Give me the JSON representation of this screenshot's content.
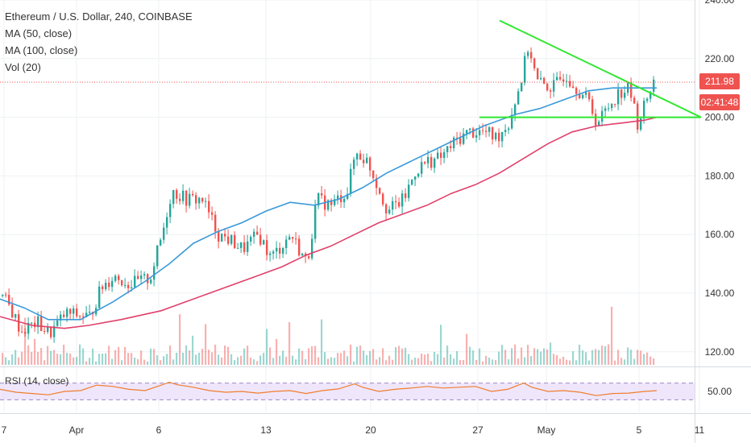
{
  "legend": {
    "title": "Ethereum / U.S. Dollar, 240, COINBASE",
    "ma50": "MA (50, close)",
    "ma100": "MA (100, close)",
    "vol": "Vol (20)",
    "rsi": "RSI (14, close)"
  },
  "price_tag": {
    "value": "211.98",
    "countdown": "02:41:48"
  },
  "colors": {
    "up": "#26a69a",
    "down": "#ef5350",
    "ma50": "#3a9ad9",
    "ma100": "#e0406b",
    "trend": "#2ee82e",
    "rsi": "#f07d2c",
    "rsi_band": "#e8dcfb"
  },
  "chart_data": {
    "type": "line",
    "instrument": "Ethereum / U.S. Dollar, 240, COINBASE",
    "price_axis": {
      "min": 115,
      "max": 240,
      "ticks": [
        "240.00",
        "220.00",
        "200.00",
        "180.00",
        "160.00",
        "140.00",
        "120.00"
      ]
    },
    "rsi_axis": {
      "ticks": [
        "50.00"
      ],
      "band": [
        30,
        70
      ]
    },
    "x_ticks": [
      "7",
      "Apr",
      "6",
      "13",
      "20",
      "27",
      "May",
      "5",
      "11"
    ],
    "series": [
      {
        "name": "MA (50, close)",
        "key": "ma50",
        "points": [
          [
            0,
            138
          ],
          [
            30,
            135
          ],
          [
            60,
            131
          ],
          [
            100,
            131
          ],
          [
            140,
            137
          ],
          [
            180,
            144
          ],
          [
            210,
            150
          ],
          [
            240,
            157
          ],
          [
            270,
            161
          ],
          [
            300,
            164
          ],
          [
            330,
            168
          ],
          [
            360,
            171
          ],
          [
            390,
            170
          ],
          [
            420,
            172
          ],
          [
            450,
            176
          ],
          [
            480,
            181
          ],
          [
            510,
            185
          ],
          [
            540,
            189
          ],
          [
            570,
            193
          ],
          [
            600,
            197
          ],
          [
            640,
            201
          ],
          [
            670,
            203
          ],
          [
            700,
            206
          ],
          [
            730,
            209
          ],
          [
            760,
            210
          ],
          [
            790,
            210
          ],
          [
            815,
            210
          ]
        ]
      },
      {
        "name": "MA (100, close)",
        "key": "ma100",
        "points": [
          [
            0,
            132
          ],
          [
            40,
            129
          ],
          [
            80,
            128
          ],
          [
            110,
            129
          ],
          [
            150,
            131
          ],
          [
            200,
            134
          ],
          [
            230,
            137
          ],
          [
            260,
            140
          ],
          [
            290,
            143
          ],
          [
            320,
            146
          ],
          [
            350,
            149
          ],
          [
            380,
            153
          ],
          [
            410,
            156
          ],
          [
            440,
            160
          ],
          [
            470,
            164
          ],
          [
            500,
            167
          ],
          [
            530,
            170
          ],
          [
            560,
            174
          ],
          [
            590,
            177
          ],
          [
            620,
            181
          ],
          [
            650,
            186
          ],
          [
            680,
            191
          ],
          [
            710,
            195
          ],
          [
            740,
            197
          ],
          [
            770,
            198
          ],
          [
            800,
            199
          ],
          [
            815,
            200
          ]
        ]
      },
      {
        "name": "RSI (14, close)",
        "key": "rsi",
        "points": [
          [
            0,
            55
          ],
          [
            20,
            48
          ],
          [
            40,
            45
          ],
          [
            60,
            42
          ],
          [
            80,
            50
          ],
          [
            100,
            52
          ],
          [
            120,
            65
          ],
          [
            140,
            62
          ],
          [
            160,
            55
          ],
          [
            180,
            52
          ],
          [
            200,
            65
          ],
          [
            210,
            72
          ],
          [
            220,
            66
          ],
          [
            240,
            60
          ],
          [
            260,
            52
          ],
          [
            280,
            48
          ],
          [
            300,
            50
          ],
          [
            320,
            46
          ],
          [
            340,
            50
          ],
          [
            360,
            52
          ],
          [
            380,
            45
          ],
          [
            400,
            52
          ],
          [
            420,
            56
          ],
          [
            440,
            68
          ],
          [
            450,
            60
          ],
          [
            470,
            50
          ],
          [
            490,
            55
          ],
          [
            510,
            58
          ],
          [
            530,
            62
          ],
          [
            550,
            58
          ],
          [
            570,
            60
          ],
          [
            590,
            62
          ],
          [
            610,
            50
          ],
          [
            630,
            55
          ],
          [
            650,
            70
          ],
          [
            660,
            60
          ],
          [
            680,
            50
          ],
          [
            700,
            52
          ],
          [
            720,
            48
          ],
          [
            740,
            40
          ],
          [
            760,
            45
          ],
          [
            780,
            46
          ],
          [
            800,
            50
          ],
          [
            815,
            52
          ]
        ]
      }
    ],
    "annotations": [
      {
        "type": "trendline",
        "from": [
          620,
          233
        ],
        "to": [
          870,
          200
        ]
      },
      {
        "type": "horizontal",
        "from": [
          595,
          200
        ],
        "to": [
          870,
          200
        ]
      },
      {
        "type": "current_price",
        "value": 211.98
      }
    ]
  }
}
